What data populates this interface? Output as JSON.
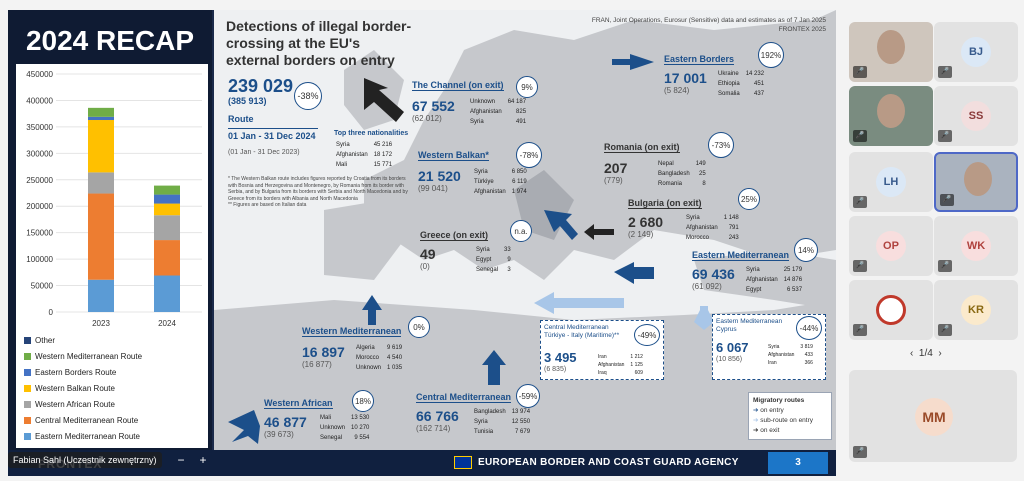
{
  "window": {
    "participant_name": "Fabian Sahl (Uczestnik zewnętrzny)"
  },
  "slide": {
    "recap_title": "2024 RECAP",
    "main_title": "Detections of illegal border-crossing at the EU's external borders on entry",
    "source": "FRAN, Joint Operations, Eurosur (Sensitive) data and estimates as of 7 Jan 2025",
    "source2": "FRONTEX 2025",
    "total": "239 029",
    "total_prev": "(385 913)",
    "total_pct": "-38%",
    "route_label": "Route",
    "period": "01 Jan - 31 Dec 2024",
    "period_prev": "(01 Jan - 31 Dec 2023)",
    "top_nat_label": "Top three nationalities",
    "top_nat": [
      [
        "Syria",
        "45 216"
      ],
      [
        "Afghanistan",
        "18 172"
      ],
      [
        "Mali",
        "15 771"
      ]
    ],
    "notes": [
      "* The Western Balkan route includes figures reported by Croatia from its borders with Bosnia and Herzegovina and Montenegro, by Romania from its border with Serbia, and by Bulgaria from its borders with Serbia and North Macedonia and by Greece from its borders with Albania and North Macedonia",
      "** Figures are based on Italian data"
    ],
    "routes": {
      "channel": {
        "name": "The Channel (on exit)",
        "value": "67 552",
        "prev": "(62 012)",
        "pct": "9%",
        "rows": [
          [
            "Unknown",
            "64 187"
          ],
          [
            "Afghanistan",
            "825"
          ],
          [
            "Syria",
            "491"
          ]
        ]
      },
      "eastern_borders": {
        "name": "Eastern Borders",
        "value": "17 001",
        "prev": "(5 824)",
        "pct": "192%",
        "rows": [
          [
            "Ukraine",
            "14 232"
          ],
          [
            "Ethiopia",
            "451"
          ],
          [
            "Somalia",
            "437"
          ]
        ]
      },
      "western_balkan": {
        "name": "Western Balkan*",
        "value": "21 520",
        "prev": "(99 041)",
        "pct": "-78%",
        "rows": [
          [
            "Syria",
            "6 850"
          ],
          [
            "Türkiye",
            "6 119"
          ],
          [
            "Afghanistan",
            "1 974"
          ]
        ]
      },
      "romania": {
        "name": "Romania (on exit)",
        "value": "207",
        "prev": "(779)",
        "pct": "-73%",
        "rows": [
          [
            "Nepal",
            "149"
          ],
          [
            "Bangladesh",
            "25"
          ],
          [
            "Romania",
            "8"
          ]
        ]
      },
      "bulgaria": {
        "name": "Bulgaria (on exit)",
        "value": "2 680",
        "prev": "(2 149)",
        "pct": "25%",
        "rows": [
          [
            "Syria",
            "1 148"
          ],
          [
            "Afghanistan",
            "791"
          ],
          [
            "Morocco",
            "243"
          ]
        ]
      },
      "greece": {
        "name": "Greece (on exit)",
        "value": "49",
        "prev": "(0)",
        "pct": "n.a.",
        "rows": [
          [
            "Syria",
            "33"
          ],
          [
            "Egypt",
            "9"
          ],
          [
            "Senegal",
            "3"
          ]
        ]
      },
      "eastern_med": {
        "name": "Eastern Mediterranean",
        "value": "69 436",
        "prev": "(61 092)",
        "pct": "14%",
        "rows": [
          [
            "Syria",
            "25 179"
          ],
          [
            "Afghanistan",
            "14 876"
          ],
          [
            "Egypt",
            "6 537"
          ]
        ]
      },
      "western_med": {
        "name": "Western Mediterranean",
        "value": "16 897",
        "prev": "(16 877)",
        "pct": "0%",
        "rows": [
          [
            "Algeria",
            "9 619"
          ],
          [
            "Morocco",
            "4 540"
          ],
          [
            "Unknown",
            "1 035"
          ]
        ]
      },
      "central_turkiye": {
        "name": "Central Mediterranean Türkiye - Italy (Maritime)**",
        "value": "3 495",
        "prev": "(6 835)",
        "pct": "-49%",
        "rows": [
          [
            "Iran",
            "1 212"
          ],
          [
            "Afghanistan",
            "1 125"
          ],
          [
            "Iraq",
            "609"
          ]
        ]
      },
      "eastern_cyprus": {
        "name": "Eastern Mediterranean Cyprus",
        "value": "6 067",
        "prev": "(10 856)",
        "pct": "-44%",
        "rows": [
          [
            "Syria",
            "3 819"
          ],
          [
            "Afghanistan",
            "433"
          ],
          [
            "Iran",
            "366"
          ]
        ]
      },
      "western_african": {
        "name": "Western African",
        "value": "46 877",
        "prev": "(39 673)",
        "pct": "18%",
        "rows": [
          [
            "Mali",
            "13 530"
          ],
          [
            "Unknown",
            "10 270"
          ],
          [
            "Senegal",
            "9 554"
          ]
        ]
      },
      "central_med": {
        "name": "Central Mediterranean",
        "value": "66 766",
        "prev": "(162 714)",
        "pct": "-59%",
        "rows": [
          [
            "Bangladesh",
            "13 974"
          ],
          [
            "Syria",
            "12 550"
          ],
          [
            "Tunisia",
            "7 679"
          ]
        ]
      }
    },
    "legend_box": {
      "title": "Migratory routes",
      "items": [
        "on entry",
        "sub-route on entry",
        "on exit"
      ]
    },
    "footer": {
      "agency": "EUROPEAN BORDER AND COAST GUARD AGENCY",
      "page": "3",
      "brand": "FRONTEX"
    }
  },
  "chart_data": {
    "type": "bar",
    "stacked": true,
    "categories": [
      "2023",
      "2024"
    ],
    "ylim": [
      0,
      450000
    ],
    "yticks": [
      "0",
      "50000",
      "100000",
      "150000",
      "200000",
      "250000",
      "300000",
      "350000",
      "400000",
      "450000"
    ],
    "series": [
      {
        "name": "Eastern Mediterranean Route",
        "color": "#5b9bd5",
        "values": [
          61000,
          69000
        ]
      },
      {
        "name": "Central Mediterranean Route",
        "color": "#ed7d31",
        "values": [
          163000,
          67000
        ]
      },
      {
        "name": "Western African Route",
        "color": "#a5a5a5",
        "values": [
          40000,
          47000
        ]
      },
      {
        "name": "Western Balkan Route",
        "color": "#ffc000",
        "values": [
          99000,
          22000
        ]
      },
      {
        "name": "Eastern Borders Route",
        "color": "#4472c4",
        "values": [
          6000,
          17000
        ]
      },
      {
        "name": "Western Mediterranean Route",
        "color": "#70ad47",
        "values": [
          17000,
          17000
        ]
      },
      {
        "name": "Other",
        "color": "#264478",
        "values": [
          0,
          0
        ]
      }
    ],
    "legend": [
      "Other",
      "Western Mediterranean Route",
      "Eastern Borders Route",
      "Western Balkan Route",
      "Western African Route",
      "Central Mediterranean Route",
      "Eastern Mediterranean Route"
    ]
  },
  "participants": {
    "pager": "1/4",
    "tiles": [
      {
        "initials": "",
        "video": true
      },
      {
        "initials": "BJ"
      },
      {
        "initials": "",
        "video": true
      },
      {
        "initials": "SS"
      },
      {
        "initials": "LH"
      },
      {
        "initials": "",
        "video": true
      },
      {
        "initials": "OP"
      },
      {
        "initials": "WK"
      },
      {
        "initials": "",
        "logo": true
      },
      {
        "initials": "KR"
      },
      {
        "initials": "MM"
      }
    ]
  }
}
